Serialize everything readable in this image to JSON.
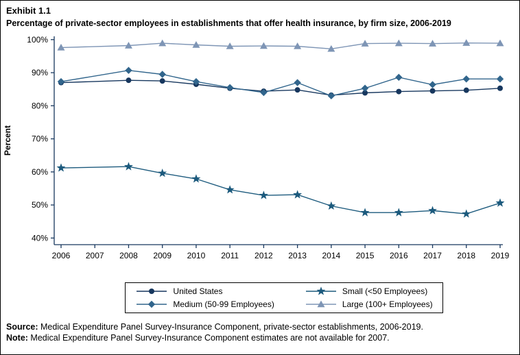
{
  "source_line": {
    "label": "Source:",
    "text": " Medical Expenditure Panel Survey-Insurance Component, private-sector establishments, 2006-2019."
  },
  "note_line": {
    "label": "Note:",
    "text": " Medical Expenditure Panel Survey-Insurance Component estimates are not available for 2007."
  },
  "chart_data": {
    "type": "line",
    "exhibit": "Exhibit 1.1",
    "title": "Percentage of private-sector employees in establishments that offer health insurance, by firm size, 2006-2019",
    "x": [
      2006,
      2007,
      2008,
      2009,
      2010,
      2011,
      2012,
      2013,
      2014,
      2015,
      2016,
      2017,
      2018,
      2019
    ],
    "xlabel": "",
    "ylabel": "Percent",
    "ylim": [
      38,
      101
    ],
    "yticks": [
      40,
      50,
      60,
      70,
      80,
      90,
      100
    ],
    "ytick_suffix": "%",
    "grid": false,
    "legend_position": "bottom",
    "legend_order": [
      0,
      2,
      1,
      3
    ],
    "missing_note_year": 2007,
    "axis_color": "#17375E",
    "series": [
      {
        "name": "United States",
        "marker": "circle",
        "color": "#17375E",
        "values": [
          87.0,
          null,
          87.7,
          87.5,
          86.5,
          85.3,
          84.4,
          84.8,
          83.2,
          83.9,
          84.3,
          84.5,
          84.7,
          85.3
        ]
      },
      {
        "name": "Medium (50-99 Employees)",
        "marker": "diamond",
        "color": "#31658C",
        "values": [
          87.3,
          null,
          90.7,
          89.5,
          87.3,
          85.5,
          84.0,
          87.0,
          83.0,
          85.3,
          88.6,
          86.4,
          88.1,
          88.1
        ]
      },
      {
        "name": "Small (<50 Employees)",
        "marker": "star",
        "color": "#1C5A7D",
        "values": [
          61.2,
          null,
          61.6,
          59.6,
          57.9,
          54.6,
          52.9,
          53.1,
          49.7,
          47.7,
          47.7,
          48.3,
          47.3,
          50.6
        ]
      },
      {
        "name": "Large (100+ Employees)",
        "marker": "triangle",
        "color": "#7E95B5",
        "values": [
          97.6,
          null,
          98.2,
          98.9,
          98.4,
          98.0,
          98.1,
          98.0,
          97.2,
          98.8,
          98.9,
          98.8,
          99.0,
          98.9
        ]
      }
    ]
  }
}
